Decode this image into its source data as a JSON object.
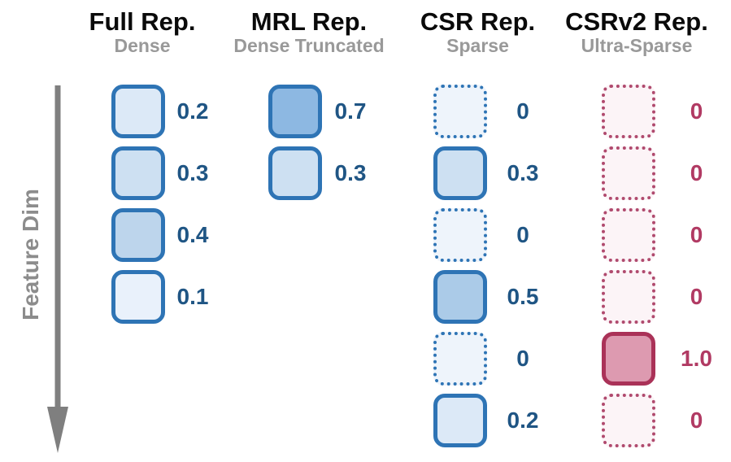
{
  "figure": {
    "axis_label": "Feature Dim",
    "colors": {
      "blue_border": "#2e74b5",
      "blue_value_text": "#1f5584",
      "pink_solid_border": "#aa3258",
      "pink_dotted_border": "#b04a6e",
      "pink_value_text": "#b13a63",
      "title_text": "#0a0a0a",
      "subtitle_text": "#999999",
      "axis_gray": "#7f7f7f"
    },
    "columns": [
      {
        "id": "full",
        "title": "Full Rep.",
        "subtitle": "Dense",
        "theme": "blue",
        "cells": [
          {
            "value": "0.2",
            "style": "solid",
            "fill": "#dce9f7"
          },
          {
            "value": "0.3",
            "style": "solid",
            "fill": "#cde0f2"
          },
          {
            "value": "0.4",
            "style": "solid",
            "fill": "#bdd5ec"
          },
          {
            "value": "0.1",
            "style": "solid",
            "fill": "#e9f1fb"
          }
        ]
      },
      {
        "id": "mrl",
        "title": "MRL Rep.",
        "subtitle": "Dense Truncated",
        "theme": "blue",
        "cells": [
          {
            "value": "0.7",
            "style": "solid",
            "fill": "#8db8e2"
          },
          {
            "value": "0.3",
            "style": "solid",
            "fill": "#cde0f2"
          }
        ]
      },
      {
        "id": "csr",
        "title": "CSR Rep.",
        "subtitle": "Sparse",
        "theme": "blue",
        "cells": [
          {
            "value": "0",
            "style": "dotted",
            "fill": "#eef4fb"
          },
          {
            "value": "0.3",
            "style": "solid",
            "fill": "#cde0f2"
          },
          {
            "value": "0",
            "style": "dotted",
            "fill": "#eef4fb"
          },
          {
            "value": "0.5",
            "style": "solid",
            "fill": "#abcbe8"
          },
          {
            "value": "0",
            "style": "dotted",
            "fill": "#eef4fb"
          },
          {
            "value": "0.2",
            "style": "solid",
            "fill": "#dce9f7"
          }
        ]
      },
      {
        "id": "csrv2",
        "title": "CSRv2 Rep.",
        "subtitle": "Ultra-Sparse",
        "theme": "pink",
        "cells": [
          {
            "value": "0",
            "style": "dotted",
            "fill": "#fcf4f7"
          },
          {
            "value": "0",
            "style": "dotted",
            "fill": "#fcf4f7"
          },
          {
            "value": "0",
            "style": "dotted",
            "fill": "#fcf4f7"
          },
          {
            "value": "0",
            "style": "dotted",
            "fill": "#fcf4f7"
          },
          {
            "value": "1.0",
            "style": "solid",
            "fill": "#dd9ab0"
          },
          {
            "value": "0",
            "style": "dotted",
            "fill": "#fcf4f7"
          }
        ]
      }
    ]
  }
}
